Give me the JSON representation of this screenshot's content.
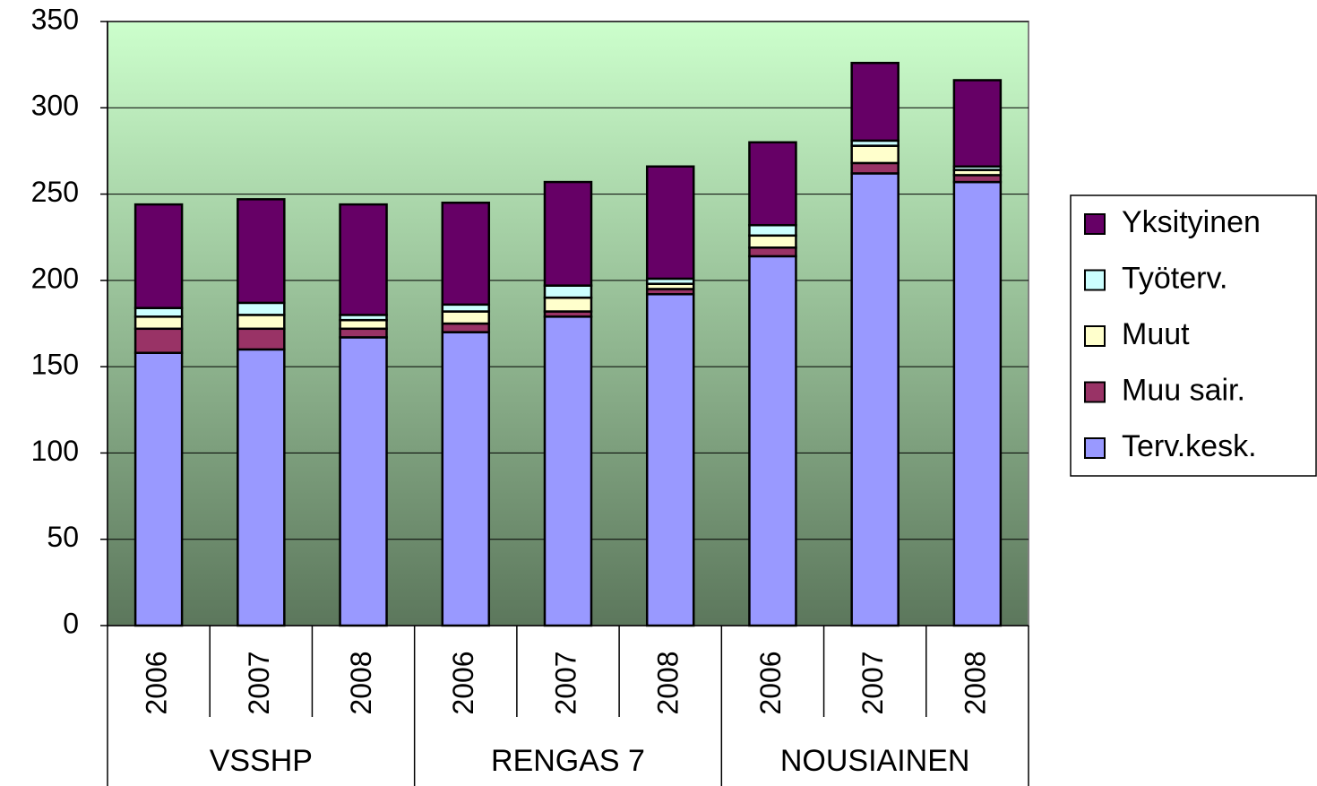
{
  "chart_data": {
    "type": "stacked_bar",
    "categories": [
      "2006",
      "2007",
      "2008",
      "2006",
      "2007",
      "2008",
      "2006",
      "2007",
      "2008"
    ],
    "groups": [
      "VSSHP",
      "RENGAS 7",
      "NOUSIAINEN"
    ],
    "series": [
      {
        "name": "Terv.kesk.",
        "color": "#9999ff",
        "values": [
          158,
          160,
          167,
          170,
          179,
          192,
          214,
          262,
          257
        ]
      },
      {
        "name": "Muu sair.",
        "color": "#993366",
        "values": [
          14,
          12,
          5,
          5,
          3,
          3,
          5,
          6,
          4
        ]
      },
      {
        "name": "Muut",
        "color": "#ffffcc",
        "values": [
          7,
          8,
          5,
          7,
          8,
          3,
          7,
          10,
          3
        ]
      },
      {
        "name": "Työterv.",
        "color": "#ccffff",
        "values": [
          5,
          7,
          3,
          4,
          7,
          3,
          6,
          3,
          2
        ]
      },
      {
        "name": "Yksityinen",
        "color": "#660066",
        "values": [
          60,
          60,
          64,
          59,
          60,
          65,
          48,
          45,
          50
        ]
      }
    ],
    "ylim": [
      0,
      350
    ],
    "yticks": [
      0,
      50,
      100,
      150,
      200,
      250,
      300,
      350
    ],
    "grid": true,
    "legend": "right"
  }
}
